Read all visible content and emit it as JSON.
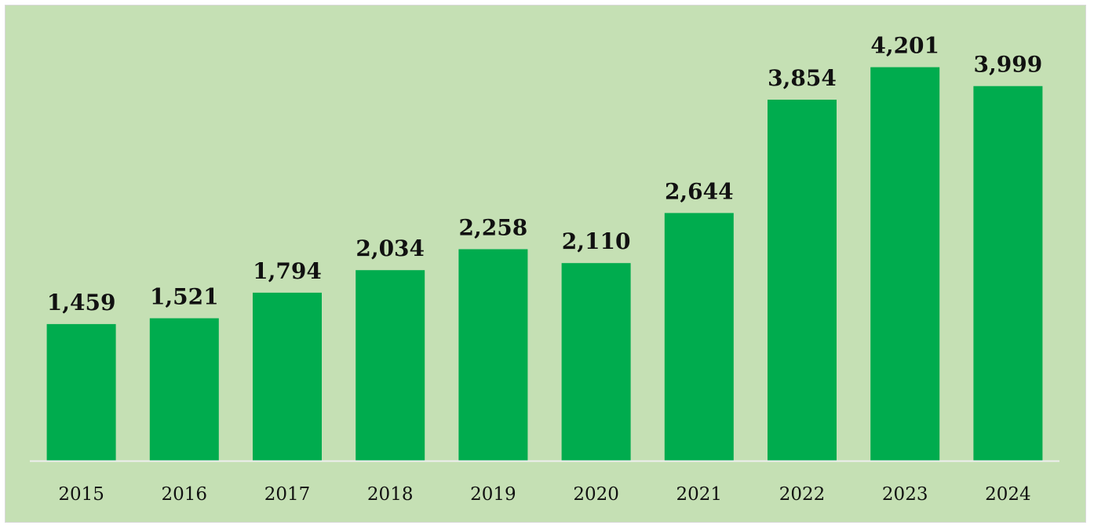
{
  "chart_data": {
    "type": "bar",
    "title": "",
    "xlabel": "",
    "ylabel": "",
    "categories": [
      "2015",
      "2016",
      "2017",
      "2018",
      "2019",
      "2020",
      "2021",
      "2022",
      "2023",
      "2024"
    ],
    "values": [
      1459,
      1521,
      1794,
      2034,
      2258,
      2110,
      2644,
      3854,
      4201,
      3999
    ],
    "value_labels": [
      "1,459",
      "1,521",
      "1,794",
      "2,034",
      "2,258",
      "2,110",
      "2,644",
      "3,854",
      "4,201",
      "3,999"
    ],
    "ylim": [
      0,
      4600
    ],
    "grid": false,
    "legend": "none",
    "colors": {
      "bar": "#00ac4e",
      "background": "#c5e0b4",
      "axis": "#eeeeee",
      "text": "#111111"
    }
  }
}
